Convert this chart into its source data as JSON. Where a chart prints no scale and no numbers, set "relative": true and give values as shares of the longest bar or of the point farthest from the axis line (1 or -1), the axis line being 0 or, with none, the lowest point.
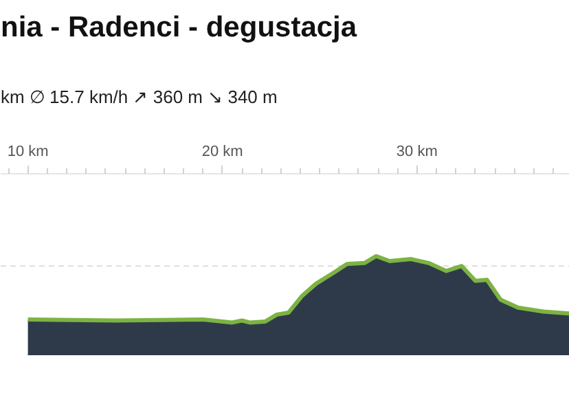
{
  "chart_data": {
    "type": "area",
    "title": "nia - Radenci - degustacja",
    "subtitle": "km   ∅ 15.7 km/h   ↗ 360 m   ↘ 340 m",
    "relative": true,
    "xlim": [
      8.6,
      37.85
    ],
    "xticks": [
      {
        "value": 10,
        "label": "10 km"
      },
      {
        "value": 20,
        "label": "20 km"
      },
      {
        "value": 30,
        "label": "30 km"
      }
    ],
    "grid": false,
    "ref_lines": [
      {
        "axis": "y",
        "value": 0.9,
        "label": null,
        "color": "#dddddd",
        "line_style": "dashed"
      }
    ],
    "series": [
      {
        "color": "#2e3a4a",
        "x": [
          10.0,
          14.5,
          19.0,
          20.5,
          21.0,
          21.4,
          22.2,
          22.8,
          23.4,
          24.1,
          24.8,
          25.7,
          26.4,
          27.3,
          27.9,
          28.6,
          29.7,
          30.6,
          31.5,
          32.3,
          33.0,
          33.6,
          34.3,
          35.2,
          36.5,
          37.85
        ],
        "values": [
          0.36,
          0.35,
          0.36,
          0.33,
          0.35,
          0.33,
          0.34,
          0.41,
          0.43,
          0.6,
          0.72,
          0.83,
          0.92,
          0.93,
          1.0,
          0.95,
          0.97,
          0.93,
          0.85,
          0.9,
          0.75,
          0.76,
          0.56,
          0.48,
          0.44,
          0.42
        ]
      }
    ]
  }
}
